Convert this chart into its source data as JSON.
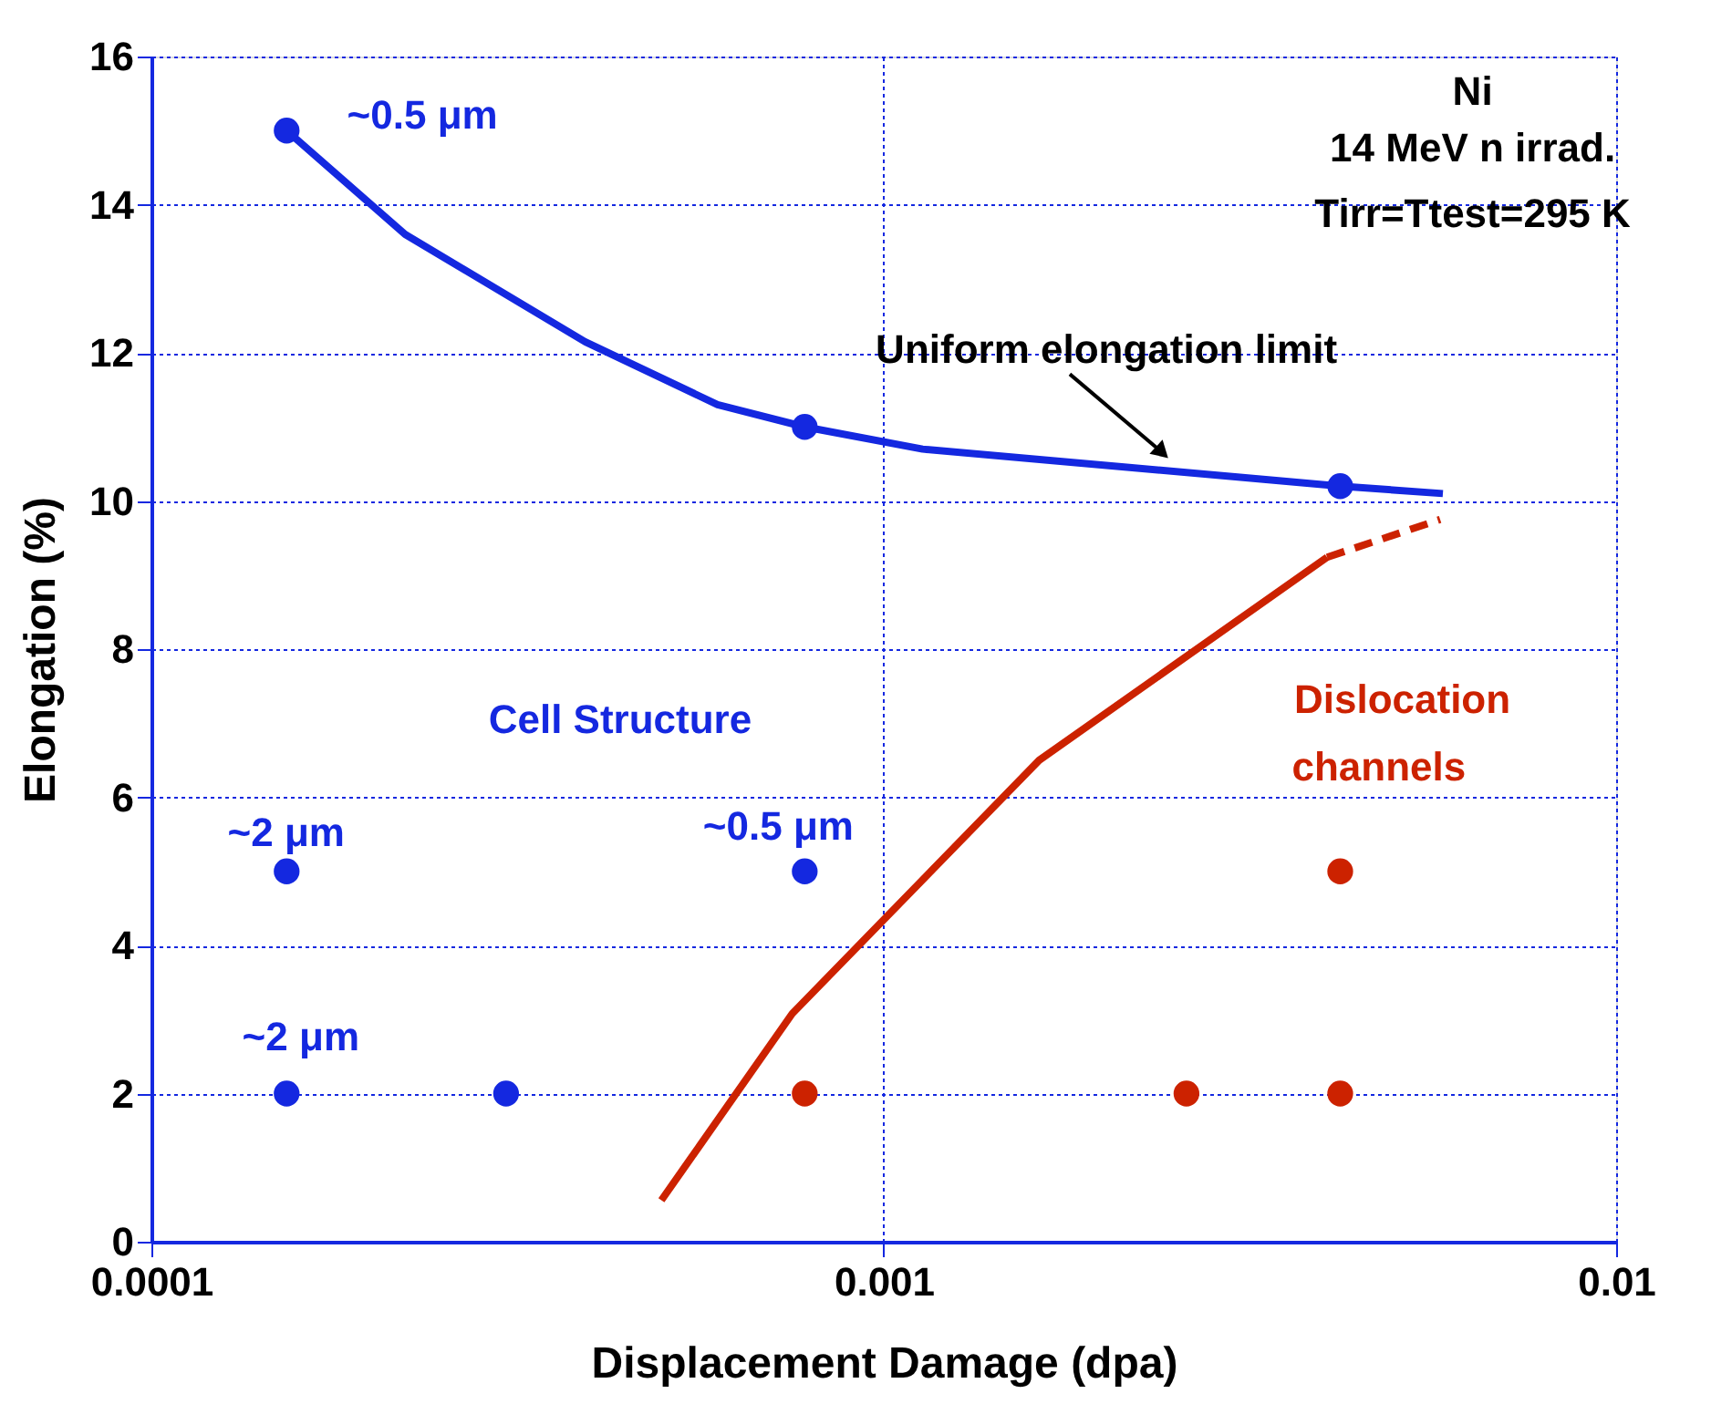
{
  "chart_data": {
    "type": "line",
    "xlabel": "Displacement Damage (dpa)",
    "ylabel": "Elongation (%)",
    "log": "x",
    "xlim": [
      0.0001,
      0.01
    ],
    "xticks": [
      {
        "value": 0.0001,
        "label": "0.0001"
      },
      {
        "value": 0.001,
        "label": "0.001"
      },
      {
        "value": 0.01,
        "label": "0.01"
      }
    ],
    "ylim": [
      0,
      16
    ],
    "yticks": [
      0,
      2,
      4,
      6,
      8,
      10,
      12,
      14,
      16
    ],
    "grid": true,
    "series": [
      {
        "color": "#1428e0",
        "x": [
          0.000153,
          0.000222,
          0.000391,
          0.000593,
          0.00078,
          0.00113,
          0.0042,
          0.0058
        ],
        "values": [
          15,
          13.6,
          12.15,
          11.3,
          11.0,
          10.7,
          10.2,
          10.1
        ],
        "line_style": "solid"
      },
      {
        "color": "#cc2200",
        "x": [
          0.000497,
          0.00075,
          0.00163,
          0.00403
        ],
        "values": [
          0.56,
          3.08,
          6.5,
          9.24
        ],
        "line_style": "solid"
      },
      {
        "color": "#cc2200",
        "x": [
          0.00403,
          0.00575
        ],
        "values": [
          9.24,
          9.75
        ],
        "line_style": "dashed"
      },
      {
        "type": "scatter",
        "color": "#1428e0",
        "marker": "circle",
        "x": [
          0.000153,
          0.00078,
          0.0042,
          0.000153,
          0.00078,
          0.000153,
          0.000305
        ],
        "values": [
          15,
          11.0,
          10.2,
          5,
          5,
          2,
          2
        ]
      },
      {
        "type": "scatter",
        "color": "#cc2200",
        "marker": "circle",
        "x": [
          0.00078,
          0.00259,
          0.0042,
          0.0042
        ],
        "values": [
          2,
          2,
          2,
          5
        ]
      }
    ],
    "annotations": [
      "~0.5 μm",
      "~2 μm",
      "~0.5 μm",
      "~2 μm",
      "Cell  Structure",
      "Dislocation",
      "channels",
      "Uniform elongation limit",
      "Ni",
      "14 MeV n irrad.",
      "Tirr=Ttest=295 K"
    ]
  }
}
